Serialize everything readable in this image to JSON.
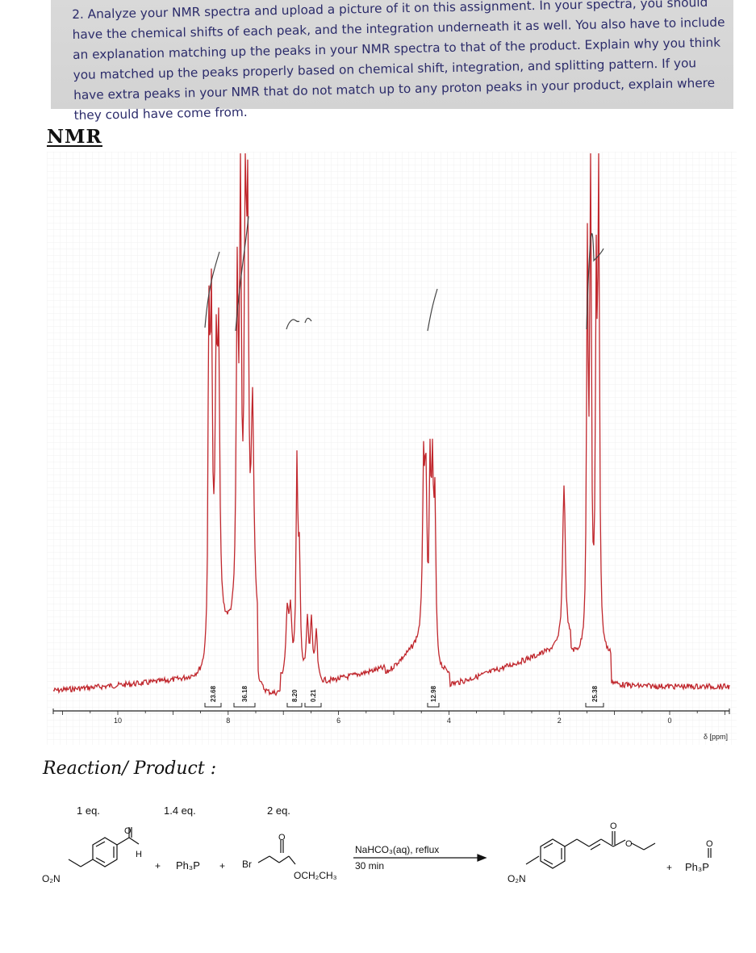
{
  "instructions": {
    "text": "2. Analyze your NMR spectra and upload a picture of it on this assignment. In your spectra, you should have the chemical shifts of each peak, and the integration underneath it as well. You also have to include an explanation matching up the peaks in your NMR spectra to that of the product. Explain why you think you matched up the peaks properly based on chemical shift, integration, and splitting pattern. If you have extra peaks in your NMR that do not match up to any proton peaks in your product, explain where they could have come from."
  },
  "headings": {
    "nmr": "NMR",
    "reaction_product": "Reaction/ Product :"
  },
  "spectrum": {
    "axis_label": "δ [ppm]",
    "x_ticks": [
      "10",
      "8",
      "6",
      "4",
      "2",
      "0"
    ],
    "integrations": [
      "23.68",
      "36.18",
      "8.20",
      "0.21",
      "12.98",
      "25.38"
    ],
    "trace_color": "#c0272d"
  },
  "reaction": {
    "reagent_eq": [
      "1 eq.",
      "1.4 eq.",
      "2 eq."
    ],
    "reagent_1_groups": {
      "nitro": "O₂N",
      "oxygen": "O",
      "hydrogen": "H"
    },
    "reagent_2": "Ph₃P",
    "reagent_3_groups": {
      "bromine": "Br",
      "oxygen": "O",
      "ester": "OCH₂CH₃"
    },
    "plus": "+",
    "conditions_top": "NaHCO₃(aq), reflux",
    "conditions_bottom": "30 min",
    "product_groups": {
      "nitro": "O₂N",
      "carbonyl_oxygen": "O",
      "ester_oxygen": "O"
    },
    "byproduct": "Ph₃P",
    "byproduct_oxygen": "O"
  }
}
